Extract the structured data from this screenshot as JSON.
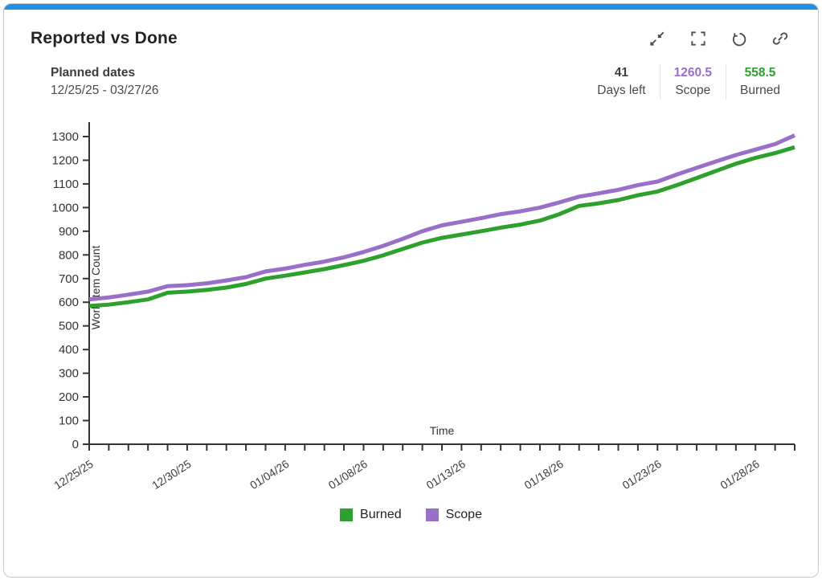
{
  "window": {
    "accent_color": "#1f8fe8"
  },
  "header": {
    "title": "Reported vs Done",
    "icons": [
      "collapse-icon",
      "fullscreen-icon",
      "reset-icon",
      "link-icon"
    ]
  },
  "subheader": {
    "planned_dates_label": "Planned dates",
    "planned_dates_value": "12/25/25 - 03/27/26",
    "stats": [
      {
        "value": "41",
        "label": "Days left",
        "color": "#3f3f3f"
      },
      {
        "value": "1260.5",
        "label": "Scope",
        "color": "#9a6fc9"
      },
      {
        "value": "558.5",
        "label": "Burned",
        "color": "#2da02d"
      }
    ]
  },
  "chart_data": {
    "type": "line",
    "title": "",
    "xlabel": "Time",
    "ylabel": "Work Item Count",
    "ylim": [
      0,
      1300
    ],
    "y_ticks": [
      0,
      100,
      200,
      300,
      400,
      500,
      600,
      700,
      800,
      900,
      1000,
      1100,
      1200,
      1300
    ],
    "grid": false,
    "legend_position": "bottom",
    "x_start_date": "12/25/25",
    "x_end_date": "01/30/26",
    "x_tick_interval_days": 1,
    "x_tick_labels": [
      {
        "day": 0,
        "label": "12/25/25"
      },
      {
        "day": 5,
        "label": "12/30/25"
      },
      {
        "day": 10,
        "label": "01/04/26"
      },
      {
        "day": 14,
        "label": "01/08/26"
      },
      {
        "day": 19,
        "label": "01/13/26"
      },
      {
        "day": 24,
        "label": "01/18/26"
      },
      {
        "day": 29,
        "label": "01/23/26"
      },
      {
        "day": 34,
        "label": "01/28/26"
      }
    ],
    "series": [
      {
        "name": "Burned",
        "color": "#2da02d",
        "values": [
          584,
          590,
          600,
          612,
          640,
          645,
          652,
          662,
          677,
          700,
          712,
          726,
          740,
          757,
          775,
          798,
          825,
          852,
          872,
          886,
          900,
          915,
          928,
          945,
          972,
          1007,
          1018,
          1032,
          1052,
          1068,
          1095,
          1125,
          1155,
          1185,
          1210,
          1230,
          1255
        ]
      },
      {
        "name": "Scope",
        "color": "#9a6fc9",
        "values": [
          612,
          620,
          632,
          645,
          668,
          672,
          680,
          692,
          706,
          730,
          742,
          758,
          772,
          790,
          812,
          838,
          868,
          900,
          925,
          940,
          955,
          972,
          984,
          1000,
          1022,
          1046,
          1060,
          1075,
          1095,
          1110,
          1140,
          1168,
          1195,
          1222,
          1245,
          1268,
          1305
        ]
      }
    ]
  }
}
